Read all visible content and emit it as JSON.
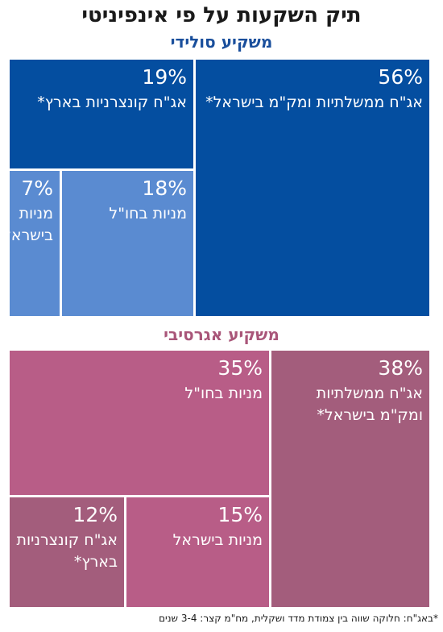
{
  "title": "תיק השקעות על פי אינפיניטי",
  "footnote": "*באג\"ח: חלוקה שווה בין צמודת מדד ושקלית, מח\"מ קצר: 3-4 שנים",
  "chart_data": [
    {
      "type": "treemap",
      "title": "משקיע סולידי",
      "title_color": "#1a4f9c",
      "series": [
        {
          "label": "אג\"ח ממשלתיות ומק\"מ בישראל*",
          "value": 56,
          "display": "56%",
          "color": "#044ea0"
        },
        {
          "label": "אג\"ח קונצרניות בארץ*",
          "value": 19,
          "display": "19%",
          "color": "#044ea0"
        },
        {
          "label": "מניות בחו\"ל",
          "value": 18,
          "display": "18%",
          "color": "#5a8bd1"
        },
        {
          "label": "מניות בישראל",
          "value": 7,
          "display": "7%",
          "color": "#5a8bd1"
        }
      ]
    },
    {
      "type": "treemap",
      "title": "משקיע אגרסיבי",
      "title_color": "#a95679",
      "series": [
        {
          "label": "אג\"ח ממשלתיות ומק\"מ בישראל*",
          "value": 38,
          "display": "38%",
          "color": "#a35d7c"
        },
        {
          "label": "מניות בחו\"ל",
          "value": 35,
          "display": "35%",
          "color": "#b85d87"
        },
        {
          "label": "מניות בישראל",
          "value": 15,
          "display": "15%",
          "color": "#b85d87"
        },
        {
          "label": "אג\"ח קונצרניות בארץ*",
          "value": 12,
          "display": "12%",
          "color": "#a35d7c"
        }
      ]
    }
  ]
}
